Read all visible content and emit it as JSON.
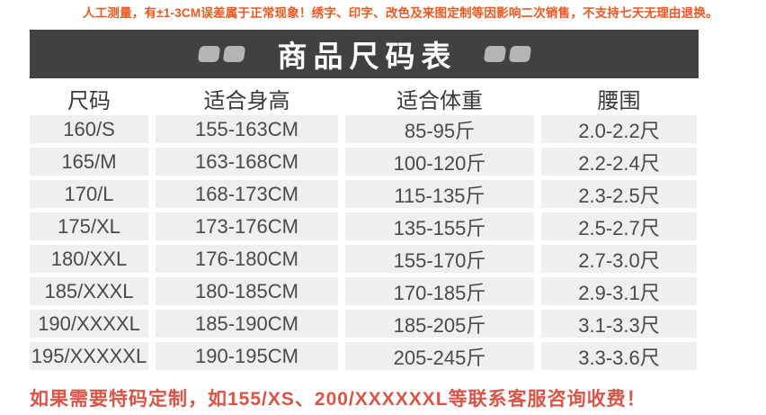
{
  "notice_top": "人工测量，有±1-3CM误差属于正常现象！绣字、印字、改色及来图定制等因影响二次销售，不支持七天无理由退换。",
  "header": {
    "title": "商品尺码表"
  },
  "chart_data": {
    "type": "table",
    "title": "商品尺码表",
    "columns": [
      "尺码",
      "适合身高",
      "适合体重",
      "腰围"
    ],
    "rows": [
      [
        "160/S",
        "155-163CM",
        "85-95斤",
        "2.0-2.2尺"
      ],
      [
        "165/M",
        "163-168CM",
        "100-120斤",
        "2.2-2.4尺"
      ],
      [
        "170/L",
        "168-173CM",
        "115-135斤",
        "2.3-2.5尺"
      ],
      [
        "175/XL",
        "173-176CM",
        "135-155斤",
        "2.5-2.7尺"
      ],
      [
        "180/XXL",
        "176-180CM",
        "155-170斤",
        "2.7-3.0尺"
      ],
      [
        "185/XXXL",
        "180-185CM",
        "170-185斤",
        "2.9-3.1尺"
      ],
      [
        "190/XXXXL",
        "185-190CM",
        "185-205斤",
        "3.1-3.3尺"
      ],
      [
        "195/XXXXXL",
        "190-195CM",
        "205-245斤",
        "3.3-3.6尺"
      ]
    ]
  },
  "notice_bottom": "如果需要特码定制，如155/XS、200/XXXXXXL等联系客服咨询收费！",
  "colors": {
    "title_bar_bg": "#414141",
    "title_text": "#ffffff",
    "deco_block": "#b5b5b5",
    "cell_bg": "#efefef",
    "cell_text": "#4a4a4a",
    "notice_top_color": "#f0571e",
    "notice_bottom_color": "#db5546"
  }
}
